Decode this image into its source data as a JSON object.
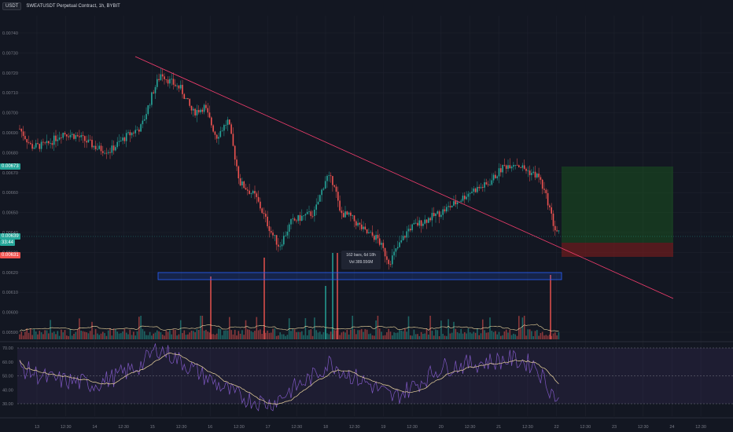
{
  "header": {
    "symbol_button": "USDT",
    "title": "SWEATUSDT Perpetual Contract, 1h, BYBIT"
  },
  "price_axis": {
    "labels": [
      "0.00740",
      "0.00730",
      "0.00720",
      "0.00710",
      "0.00700",
      "0.00690",
      "0.00680",
      "0.00670",
      "0.00660",
      "0.00650",
      "0.00640",
      "0.00630",
      "0.00620",
      "0.00610",
      "0.00600",
      "0.00590"
    ]
  },
  "price_tags": {
    "current_price": "0.00673",
    "last_price": "0.00639",
    "countdown": "33:44",
    "stop_price": "0.00631"
  },
  "rsi_axis": {
    "labels": [
      "70.00",
      "60.00",
      "50.00",
      "40.00",
      "30.00"
    ]
  },
  "time_axis": {
    "labels": [
      "13",
      "12:30",
      "14",
      "12:30",
      "15",
      "12:30",
      "16",
      "12:30",
      "17",
      "12:30",
      "18",
      "12:30",
      "19",
      "12:30",
      "20",
      "12:30",
      "21",
      "12:30",
      "22",
      "12:30",
      "23",
      "12:30",
      "24",
      "12:30"
    ]
  },
  "tooltip": {
    "line1": "162 bars, 6d 18h",
    "line2": "Vol 389.556M"
  },
  "colors": {
    "background": "#131722",
    "up": "#26a69a",
    "down": "#ef5350",
    "trendline": "#f23d6d",
    "zone_blue": "#2962ff",
    "profit": "#1b5e20",
    "loss": "#7f1d1d",
    "rsi_line": "#7e57c2",
    "rsi_ma": "#f0d9a0"
  },
  "chart_data": {
    "type": "candlestick",
    "title": "SWEATUSDT Perpetual Contract, 1h, BYBIT",
    "ylim": [
      0.00586,
      0.00748
    ],
    "description_points": {
      "trend_start": 0.00728,
      "swing_high_1": 0.00722,
      "swing_high_2": 0.00686,
      "swing_low_1": 0.0063,
      "swing_low_2": 0.00622,
      "last_high": 0.0068,
      "last_close": 0.00639
    },
    "support_zone": [
      0.00616,
      0.00621
    ],
    "target_zone": [
      0.00639,
      0.00673
    ],
    "stop_zone": [
      0.00629,
      0.00639
    ],
    "rsi_levels": [
      30,
      50,
      70
    ]
  }
}
